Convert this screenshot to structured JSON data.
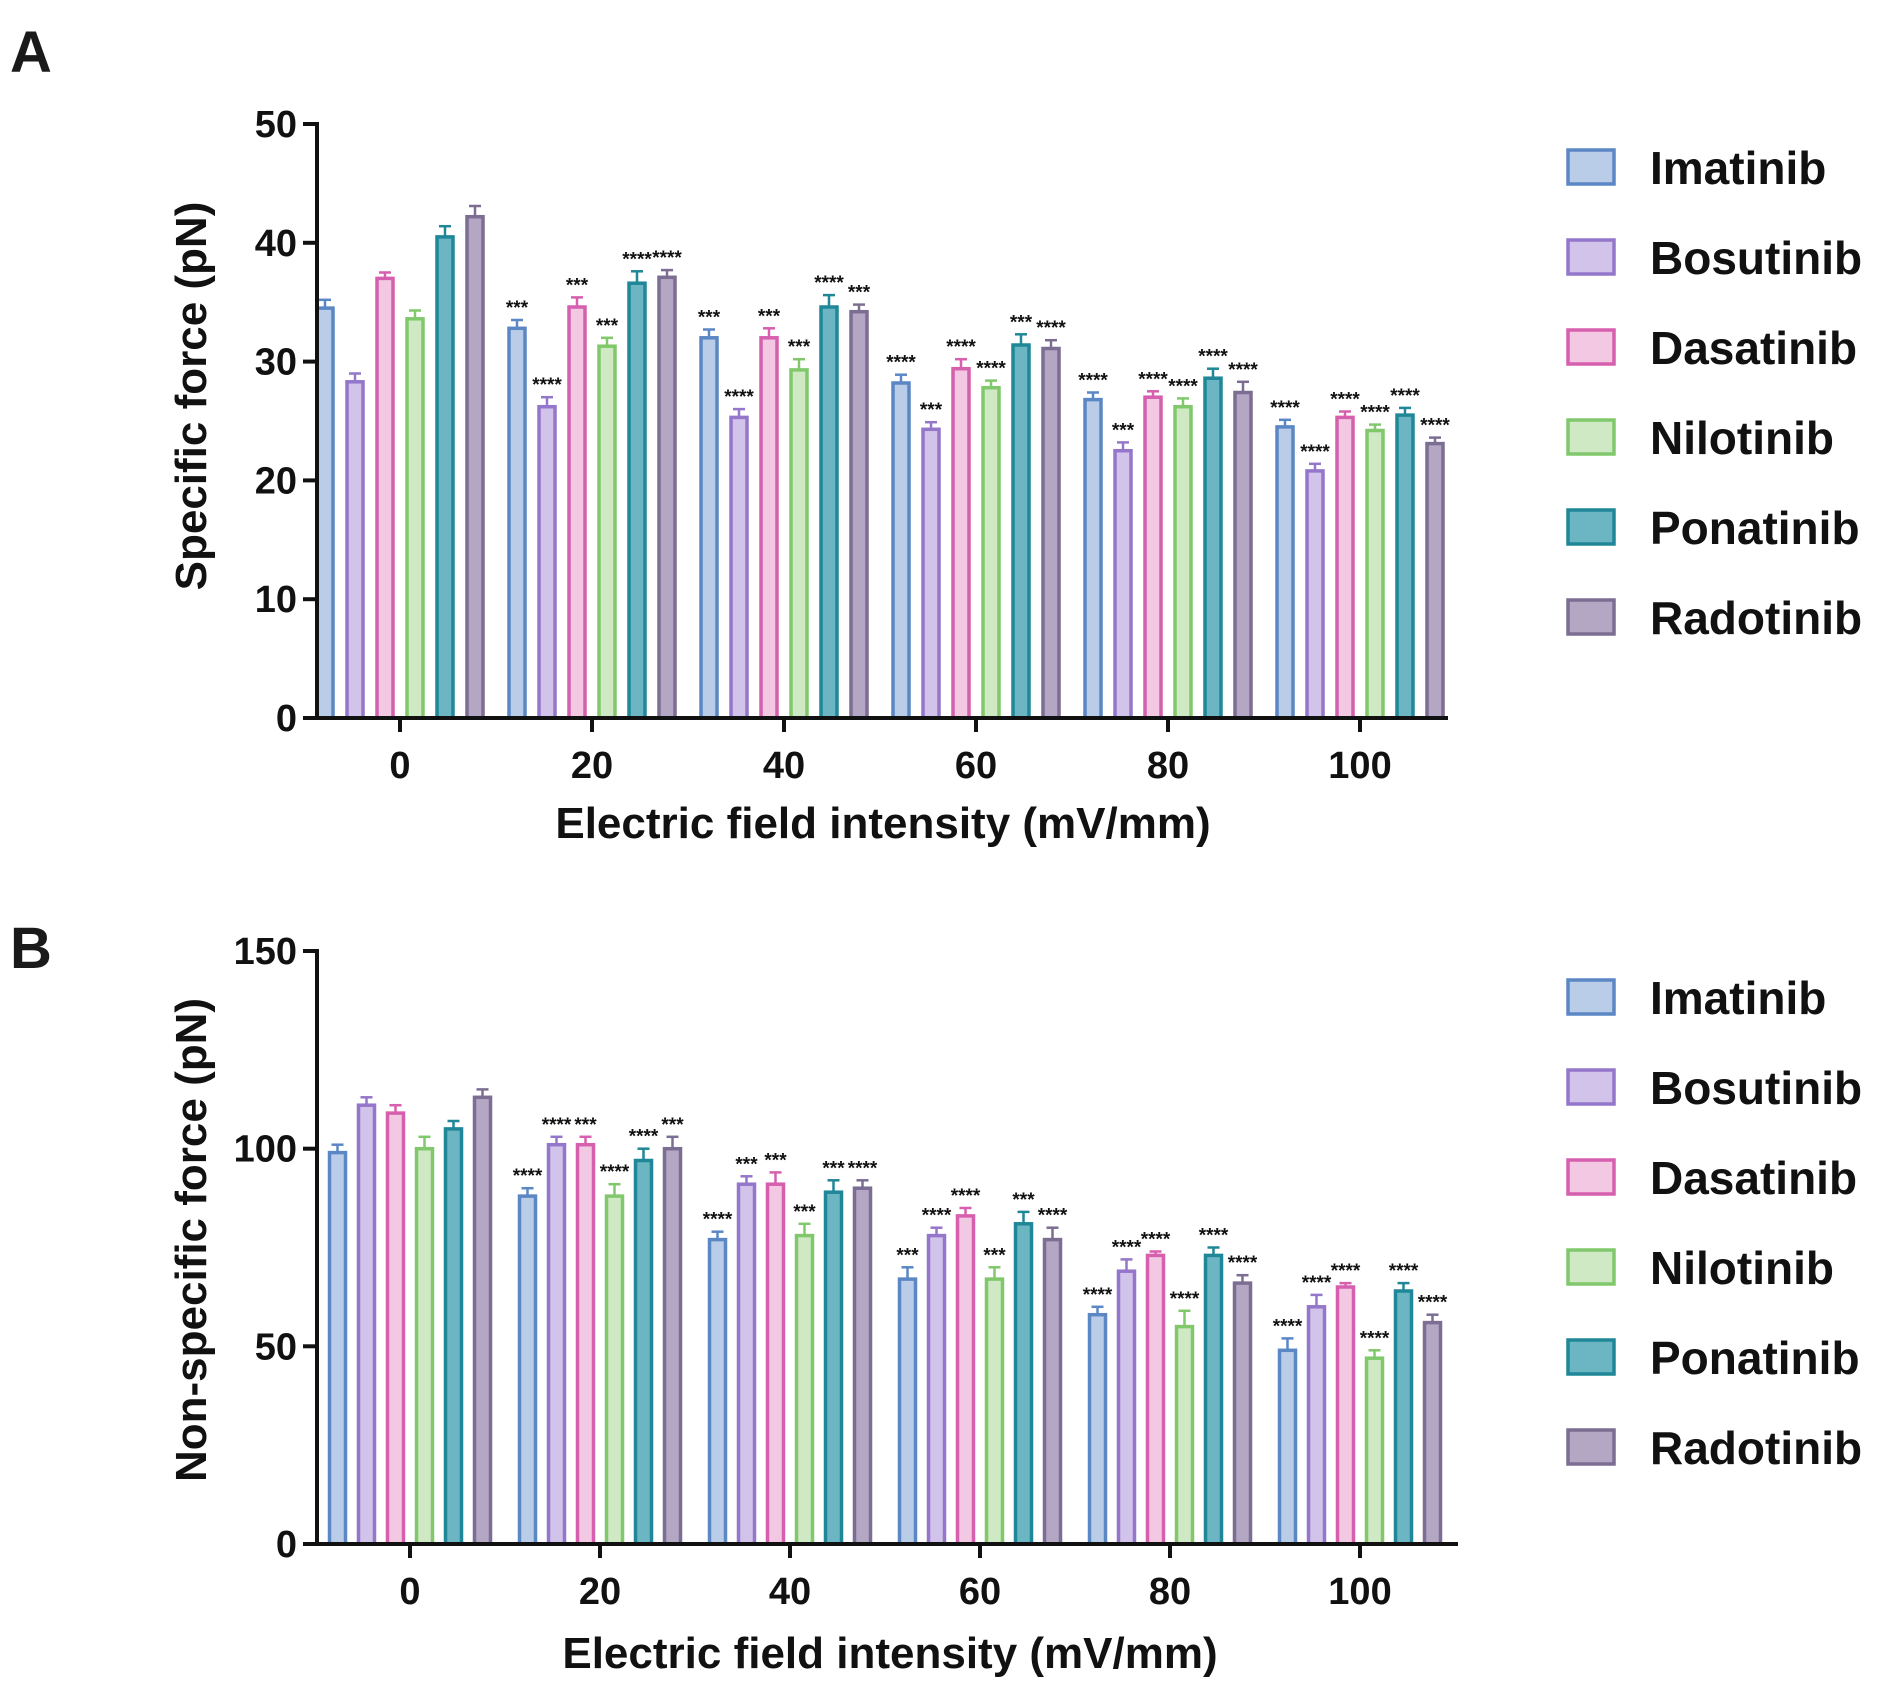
{
  "chart_data": [
    {
      "panel": "A",
      "type": "bar",
      "categories": [
        "0",
        "20",
        "40",
        "60",
        "80",
        "100"
      ],
      "xlabel": "Electric field intensity (mV/mm)",
      "ylabel": "Specific force (pN)",
      "ylim": [
        0,
        50
      ],
      "yticks": [
        "0",
        "10",
        "20",
        "30",
        "40",
        "50"
      ],
      "legend_position": "right",
      "series": [
        {
          "name": "Imatinib",
          "fill": "#b9cde9",
          "stroke": "#5b87c5",
          "values": [
            34.5,
            32.8,
            32.0,
            28.2,
            26.8,
            24.5
          ],
          "errors": [
            0.7,
            0.7,
            0.7,
            0.7,
            0.6,
            0.6
          ],
          "sig": [
            "",
            "***",
            "***",
            "****",
            "****",
            "****"
          ]
        },
        {
          "name": "Bosutinib",
          "fill": "#d2c3ea",
          "stroke": "#9476ca",
          "values": [
            28.3,
            26.2,
            25.3,
            24.3,
            22.5,
            20.8
          ],
          "errors": [
            0.7,
            0.8,
            0.7,
            0.6,
            0.7,
            0.6
          ],
          "sig": [
            "",
            "****",
            "****",
            "***",
            "***",
            "****"
          ]
        },
        {
          "name": "Dasatinib",
          "fill": "#f2c8e2",
          "stroke": "#d65fae",
          "values": [
            37.0,
            34.6,
            32.0,
            29.4,
            27.0,
            25.3
          ],
          "errors": [
            0.5,
            0.8,
            0.8,
            0.8,
            0.5,
            0.5
          ],
          "sig": [
            "",
            "***",
            "***",
            "****",
            "****",
            "****"
          ]
        },
        {
          "name": "Nilotinib",
          "fill": "#cfe9c4",
          "stroke": "#80c86b",
          "values": [
            33.6,
            31.3,
            29.3,
            27.8,
            26.2,
            24.2
          ],
          "errors": [
            0.7,
            0.7,
            0.9,
            0.6,
            0.7,
            0.5
          ],
          "sig": [
            "",
            "***",
            "***",
            "****",
            "****",
            "****"
          ]
        },
        {
          "name": "Ponatinib",
          "fill": "#6bb6c2",
          "stroke": "#1f8797",
          "values": [
            40.5,
            36.6,
            34.6,
            31.4,
            28.6,
            25.5
          ],
          "errors": [
            0.9,
            1.0,
            1.0,
            0.9,
            0.8,
            0.6
          ],
          "sig": [
            "",
            "****",
            "****",
            "***",
            "****",
            "****"
          ]
        },
        {
          "name": "Radotinib",
          "fill": "#b4a7c4",
          "stroke": "#7c6d92",
          "values": [
            42.2,
            37.1,
            34.2,
            31.1,
            27.4,
            23.1
          ],
          "errors": [
            0.9,
            0.6,
            0.6,
            0.7,
            0.9,
            0.5
          ],
          "sig": [
            "",
            "****",
            "***",
            "****",
            "****",
            "****"
          ]
        }
      ]
    },
    {
      "panel": "B",
      "type": "bar",
      "categories": [
        "0",
        "20",
        "40",
        "60",
        "80",
        "100"
      ],
      "xlabel": "Electric field intensity (mV/mm)",
      "ylabel": "Non-specific force (pN)",
      "ylim": [
        0,
        150
      ],
      "yticks": [
        "0",
        "50",
        "100",
        "150"
      ],
      "legend_position": "right",
      "series": [
        {
          "name": "Imatinib",
          "fill": "#b9cde9",
          "stroke": "#5b87c5",
          "values": [
            99,
            88,
            77,
            67,
            58,
            49
          ],
          "errors": [
            2,
            2,
            2,
            3,
            2,
            3
          ],
          "sig": [
            "",
            "****",
            "****",
            "***",
            "****",
            "****"
          ]
        },
        {
          "name": "Bosutinib",
          "fill": "#d2c3ea",
          "stroke": "#9476ca",
          "values": [
            111,
            101,
            91,
            78,
            69,
            60
          ],
          "errors": [
            2,
            2,
            2,
            2,
            3,
            3
          ],
          "sig": [
            "",
            "****",
            "***",
            "****",
            "****",
            "****"
          ]
        },
        {
          "name": "Dasatinib",
          "fill": "#f2c8e2",
          "stroke": "#d65fae",
          "values": [
            109,
            101,
            91,
            83,
            73,
            65
          ],
          "errors": [
            2,
            2,
            3,
            2,
            1,
            1
          ],
          "sig": [
            "",
            "***",
            "***",
            "****",
            "****",
            "****"
          ]
        },
        {
          "name": "Nilotinib",
          "fill": "#cfe9c4",
          "stroke": "#80c86b",
          "values": [
            100,
            88,
            78,
            67,
            55,
            47
          ],
          "errors": [
            3,
            3,
            3,
            3,
            4,
            2
          ],
          "sig": [
            "",
            "****",
            "***",
            "***",
            "****",
            "****"
          ]
        },
        {
          "name": "Ponatinib",
          "fill": "#6bb6c2",
          "stroke": "#1f8797",
          "values": [
            105,
            97,
            89,
            81,
            73,
            64
          ],
          "errors": [
            2,
            3,
            3,
            3,
            2,
            2
          ],
          "sig": [
            "",
            "****",
            "***",
            "***",
            "****",
            "****"
          ]
        },
        {
          "name": "Radotinib",
          "fill": "#b4a7c4",
          "stroke": "#7c6d92",
          "values": [
            113,
            100,
            90,
            77,
            66,
            56
          ],
          "errors": [
            2,
            3,
            2,
            3,
            2,
            2
          ],
          "sig": [
            "",
            "***",
            "****",
            "****",
            "****",
            "****"
          ]
        }
      ]
    }
  ]
}
